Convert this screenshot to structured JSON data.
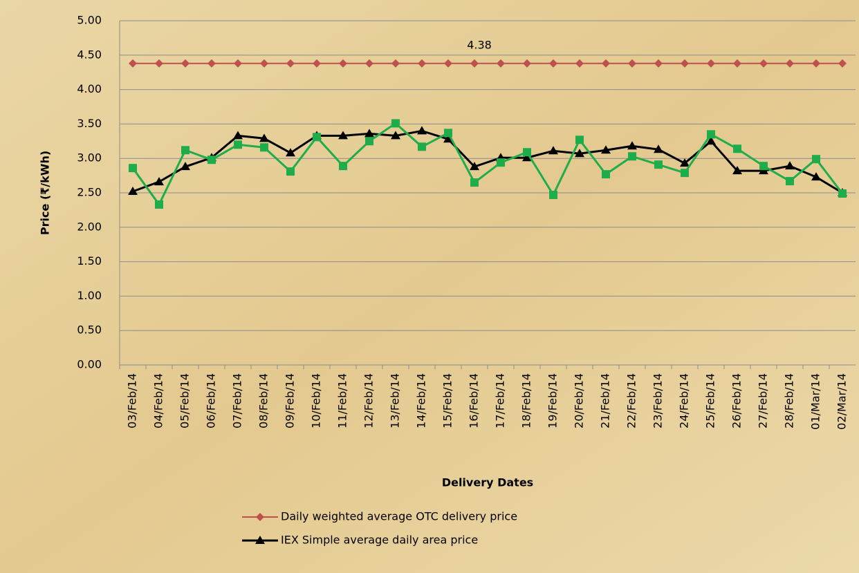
{
  "chart_data": {
    "type": "line",
    "x_label": "Delivery Dates",
    "y_label": "Price (₹/kWh)",
    "annotation": "4.38",
    "categories": [
      "03/Feb/14",
      "04/Feb/14",
      "05/Feb/14",
      "06/Feb/14",
      "07/Feb/14",
      "08/Feb/14",
      "09/Feb/14",
      "10/Feb/14",
      "11/Feb/14",
      "12/Feb/14",
      "13/Feb/14",
      "14/Feb/14",
      "15/Feb/14",
      "16/Feb/14",
      "17/Feb/14",
      "18/Feb/14",
      "19/Feb/14",
      "20/Feb/14",
      "21/Feb/14",
      "22/Feb/14",
      "23/Feb/14",
      "24/Feb/14",
      "25/Feb/14",
      "26/Feb/14",
      "27/Feb/14",
      "28/Feb/14",
      "01/Mar/14",
      "02/Mar/14"
    ],
    "series": [
      {
        "name": "Daily weighted average OTC delivery price",
        "color": "#c0504d",
        "marker": "diamond",
        "values": [
          4.38,
          4.38,
          4.38,
          4.38,
          4.38,
          4.38,
          4.38,
          4.38,
          4.38,
          4.38,
          4.38,
          4.38,
          4.38,
          4.38,
          4.38,
          4.38,
          4.38,
          4.38,
          4.38,
          4.38,
          4.38,
          4.38,
          4.38,
          4.38,
          4.38,
          4.38,
          4.38,
          4.38
        ]
      },
      {
        "name": "IEX Simple average daily area price",
        "color": "#000000",
        "marker": "triangle",
        "values": [
          2.52,
          2.66,
          2.88,
          3.01,
          3.33,
          3.29,
          3.08,
          3.33,
          3.33,
          3.36,
          3.33,
          3.4,
          3.28,
          2.88,
          3.01,
          3.01,
          3.11,
          3.07,
          3.12,
          3.18,
          3.13,
          2.93,
          3.25,
          2.82,
          2.82,
          2.89,
          2.73,
          2.5
        ]
      },
      {
        "color": "#1fad4b",
        "marker": "square",
        "values": [
          2.86,
          2.33,
          3.12,
          2.98,
          3.2,
          3.16,
          2.81,
          3.31,
          2.89,
          3.25,
          3.51,
          3.17,
          3.37,
          2.65,
          2.94,
          3.09,
          2.47,
          3.27,
          2.77,
          3.03,
          2.91,
          2.79,
          3.35,
          3.14,
          2.89,
          2.67,
          2.99,
          2.49
        ]
      }
    ],
    "ylim": [
      0,
      5
    ],
    "yticks": [
      {
        "value": 0,
        "label": "0.00"
      },
      {
        "value": 0.5,
        "label": "0.50"
      },
      {
        "value": 1,
        "label": "1.00"
      },
      {
        "value": 1.5,
        "label": "1.50"
      },
      {
        "value": 2,
        "label": "2.00"
      },
      {
        "value": 2.5,
        "label": "2.50"
      },
      {
        "value": 3,
        "label": "3.00"
      },
      {
        "value": 3.5,
        "label": "3.50"
      },
      {
        "value": 4,
        "label": "4.00"
      },
      {
        "value": 4.5,
        "label": "4.50"
      },
      {
        "value": 5,
        "label": "5.00"
      }
    ],
    "grid": true
  }
}
